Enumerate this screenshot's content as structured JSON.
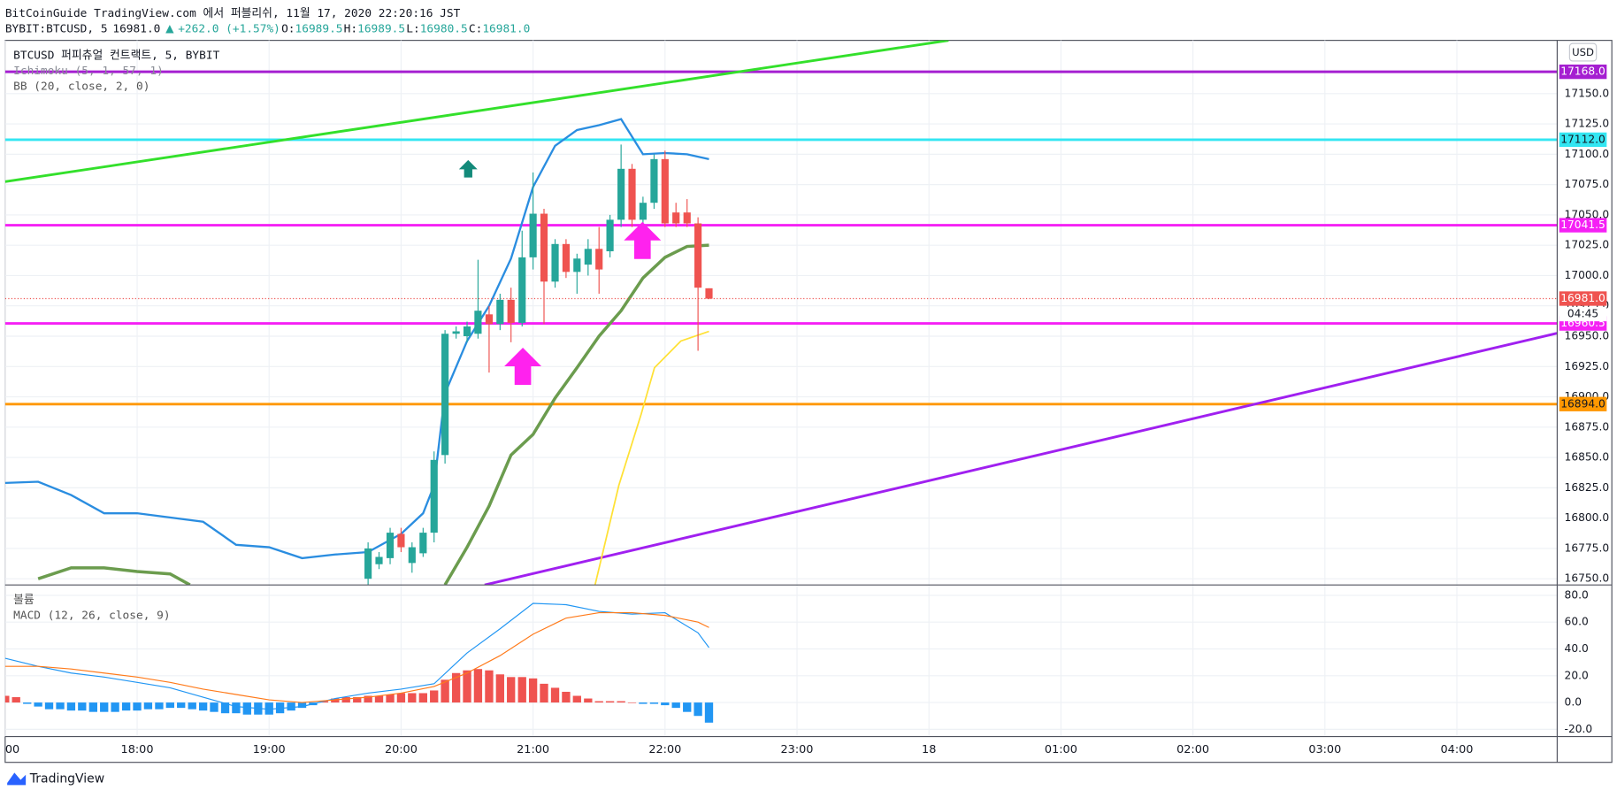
{
  "header": {
    "publisher": "BitCoinGuide TradingView.com 에서 퍼블리쉬, 11월 17, 2020 22:20:16 JST",
    "symbol": "BYBIT:BTCUSD, 5",
    "last": "16981.0",
    "change": "+262.0 (+1.57%)",
    "ohlc": [
      {
        "label": "O:",
        "value": "16989.5"
      },
      {
        "label": "H:",
        "value": "16989.5"
      },
      {
        "label": "L:",
        "value": "16980.5"
      },
      {
        "label": "C:",
        "value": "16981.0"
      }
    ]
  },
  "legend": [
    "BTCUSD 퍼피츄얼 컨트랙트, 5, BYBIT",
    "Ichimoku (5, 1, 57, 1)",
    "BB (20, close, 2, 0)"
  ],
  "currency": "USD",
  "countdown": "04:45",
  "brand": "TradingView",
  "chart_data": [
    {
      "type": "candlestick",
      "up_color": "#26a69a",
      "down_color": "#ef5350",
      "grid": true,
      "xlim": [
        17,
        28.76
      ],
      "xticks": [
        {
          "value": 17,
          "label": "00"
        },
        {
          "value": 18,
          "label": "18:00"
        },
        {
          "value": 19,
          "label": "19:00"
        },
        {
          "value": 20,
          "label": "20:00"
        },
        {
          "value": 21,
          "label": "21:00"
        },
        {
          "value": 22,
          "label": "22:00"
        },
        {
          "value": 23,
          "label": "23:00"
        },
        {
          "value": 24,
          "label": "18"
        },
        {
          "value": 25,
          "label": "01:00"
        },
        {
          "value": 26,
          "label": "02:00"
        },
        {
          "value": 27,
          "label": "03:00"
        },
        {
          "value": 28,
          "label": "04:00"
        }
      ],
      "ylim": [
        16744.9,
        17193.9
      ],
      "yticks": [
        {
          "value": 16750,
          "label": "16750.0"
        },
        {
          "value": 16775,
          "label": "16775.0"
        },
        {
          "value": 16800,
          "label": "16800.0"
        },
        {
          "value": 16825,
          "label": "16825.0"
        },
        {
          "value": 16850,
          "label": "16850.0"
        },
        {
          "value": 16875,
          "label": "16875.0"
        },
        {
          "value": 16900,
          "label": "16900.0"
        },
        {
          "value": 16925,
          "label": "16925.0"
        },
        {
          "value": 16950,
          "label": "16950.0"
        },
        {
          "value": 16975,
          "label": "16975.0"
        },
        {
          "value": 17000,
          "label": "17000.0"
        },
        {
          "value": 17025,
          "label": "17025.0"
        },
        {
          "value": 17050,
          "label": "17050.0"
        },
        {
          "value": 17075,
          "label": "17075.0"
        },
        {
          "value": 17100,
          "label": "17100.0"
        },
        {
          "value": 17125,
          "label": "17125.0"
        },
        {
          "value": 17150,
          "label": "17150.0"
        }
      ],
      "x": [
        19.75,
        19.833,
        19.917,
        20,
        20.083,
        20.167,
        20.25,
        20.333,
        20.417,
        20.5,
        20.583,
        20.667,
        20.75,
        20.833,
        20.917,
        21,
        21.083,
        21.167,
        21.25,
        21.333,
        21.417,
        21.5,
        21.583,
        21.667,
        21.75,
        21.833,
        21.917,
        22,
        22.083,
        22.167,
        22.25,
        22.333
      ],
      "open": [
        16750,
        16762,
        16767,
        16787,
        16763,
        16771,
        16788,
        16852,
        16952,
        16950,
        16952,
        16968,
        16960,
        16980,
        16961,
        17015,
        17051,
        16995,
        17026,
        17003,
        17009,
        17022,
        17020,
        17046,
        17088,
        17046,
        17060,
        17096,
        17052,
        17052,
        17043,
        16989.5
      ],
      "high": [
        16780,
        16772,
        16792,
        16792,
        16780,
        16792,
        16855,
        16955,
        16958,
        16962,
        17013,
        16975,
        16985,
        16990,
        17037,
        17085,
        17055,
        17030,
        17030,
        17018,
        17030,
        17040,
        17050,
        17108,
        17092,
        17065,
        17100,
        17103,
        17060,
        17063,
        17048,
        16989.5
      ],
      "low": [
        16745,
        16758,
        16762,
        16772,
        16755,
        16768,
        16780,
        16845,
        16948,
        16945,
        16948,
        16920,
        16955,
        16945,
        16958,
        17005,
        16960,
        16990,
        16998,
        16985,
        17000,
        16985,
        17015,
        17040,
        17040,
        17040,
        17055,
        17040,
        17040,
        17040,
        16938,
        16980.5
      ],
      "close": [
        16775,
        16768,
        16788,
        16776,
        16776,
        16788,
        16848,
        16952,
        16954,
        16958,
        16971,
        16960,
        16980,
        16961,
        17015,
        17051,
        16995,
        17026,
        17003,
        17014,
        17022,
        17005,
        17046,
        17088,
        17046,
        17060,
        17096,
        17043,
        17043,
        17043,
        16990,
        16981
      ],
      "lines": [
        {
          "color": "#2a8de0",
          "width": 2,
          "x": [
            17,
            17.25,
            17.5,
            17.75,
            18,
            18.5,
            18.75,
            19,
            19.25,
            19.5,
            19.75,
            20,
            20.167,
            20.25,
            20.333,
            20.5,
            20.667,
            20.833,
            21,
            21.167,
            21.333,
            21.5,
            21.667,
            21.833,
            22,
            22.167,
            22.333
          ],
          "values": [
            16829,
            16830,
            16819,
            16804,
            16804,
            16797,
            16778,
            16776,
            16767,
            16770,
            16772,
            16787,
            16804,
            16827,
            16903,
            16946,
            16975,
            17014,
            17073,
            17107,
            17120,
            17124,
            17129,
            17100,
            17101,
            17100,
            17096
          ]
        },
        {
          "color": "#6b9c4e",
          "width": 3,
          "x": [
            17.25,
            17.5,
            17.75,
            18,
            18.25,
            18.4,
            19.5,
            20.333,
            20.5,
            20.667,
            20.833,
            21,
            21.167,
            21.333,
            21.5,
            21.667,
            21.833,
            22,
            22.167,
            22.333
          ],
          "values": [
            16750,
            16759,
            16759,
            16756,
            16754,
            16745,
            null,
            16745,
            16776,
            16810,
            16852,
            16869,
            16899,
            16924,
            16950,
            16971,
            16998,
            17015,
            17024,
            17025
          ]
        },
        {
          "color": "#ffe135",
          "width": 1.5,
          "x": [
            21.47,
            21.65,
            21.82,
            21.92,
            22.12,
            22.333
          ],
          "values": [
            16745,
            16827,
            16886,
            16924,
            16946,
            16954
          ]
        }
      ],
      "trend_lines": [
        {
          "color": "#33e02b",
          "x": [
            17,
            24.148
          ],
          "values": [
            17077.4,
            17193.9
          ]
        },
        {
          "color": "#a020f0",
          "x": [
            20.633,
            28.758
          ],
          "values": [
            16744.9,
            16952.4
          ]
        }
      ],
      "levels": [
        {
          "value": 17168,
          "label": "17168.0",
          "color": "#a51fd1",
          "label_color": "#ffffff"
        },
        {
          "value": 17112,
          "label": "17112.0",
          "color": "#33e6f2",
          "label_color": "#131722"
        },
        {
          "value": 17041.5,
          "label": "17041.5",
          "color": "#f520f5",
          "label_color": "#ffffff"
        },
        {
          "value": 16960.5,
          "label": "16960.5",
          "color": "#f520f5",
          "label_color": "#ffffff"
        },
        {
          "value": 16894,
          "label": "16894.0",
          "color": "#ff9800",
          "label_color": "#131722"
        }
      ],
      "last_price": {
        "value": 16981,
        "label": "16981.0",
        "color": "#ef5350"
      }
    },
    {
      "type": "macd",
      "volume_label": "볼륨",
      "title": "MACD (12, 26, close, 9)",
      "ylim": [
        -25.4,
        86.2
      ],
      "yticks": [
        {
          "value": -20,
          "label": "-20.0"
        },
        {
          "value": 0,
          "label": "0.0"
        },
        {
          "value": 20,
          "label": "20.0"
        },
        {
          "value": 40,
          "label": "40.0"
        },
        {
          "value": 60,
          "label": "60.0"
        },
        {
          "value": 80,
          "label": "80.0"
        }
      ],
      "histogram": {
        "positive_color": "#ef5350",
        "negative_color": "#2196f3",
        "x": [
          17,
          17.083,
          17.167,
          17.25,
          17.333,
          17.417,
          17.5,
          17.583,
          17.667,
          17.75,
          17.833,
          17.917,
          18,
          18.083,
          18.167,
          18.25,
          18.333,
          18.417,
          18.5,
          18.583,
          18.667,
          18.75,
          18.833,
          18.917,
          19,
          19.083,
          19.167,
          19.25,
          19.333,
          19.417,
          19.5,
          19.583,
          19.667,
          19.75,
          19.833,
          19.917,
          20,
          20.083,
          20.167,
          20.25,
          20.333,
          20.417,
          20.5,
          20.583,
          20.667,
          20.75,
          20.833,
          20.917,
          21,
          21.083,
          21.167,
          21.25,
          21.333,
          21.417,
          21.5,
          21.583,
          21.667,
          21.75,
          21.833,
          21.917,
          22,
          22.083,
          22.167,
          22.25,
          22.333
        ],
        "values": [
          5,
          4,
          -1,
          -3,
          -5,
          -5,
          -6,
          -6,
          -7,
          -7,
          -7,
          -6,
          -6,
          -5,
          -5,
          -4,
          -4,
          -5,
          -6,
          -7,
          -8,
          -8,
          -9,
          -9,
          -9,
          -8,
          -6,
          -4,
          -2,
          1,
          3,
          4,
          4,
          5,
          5,
          6,
          7,
          7,
          7,
          9,
          17,
          22,
          24,
          25,
          24,
          21,
          19,
          19,
          18,
          14,
          11,
          8,
          5,
          3,
          1,
          1,
          1,
          0,
          -1,
          -1,
          -2,
          -4,
          -7,
          -10,
          -15
        ]
      },
      "series": [
        {
          "color": "#2196f3",
          "x": [
            17,
            17.25,
            17.5,
            17.75,
            18,
            18.25,
            18.5,
            18.75,
            19,
            19.25,
            19.5,
            19.75,
            20,
            20.25,
            20.5,
            20.75,
            21,
            21.25,
            21.5,
            21.75,
            22,
            22.25,
            22.333
          ],
          "values": [
            33,
            27,
            22,
            19,
            15,
            11,
            4,
            -3,
            -5,
            -3,
            3,
            7,
            10,
            14,
            37,
            55,
            74,
            73,
            68,
            66,
            67,
            52,
            41
          ]
        },
        {
          "color": "#ff7a1a",
          "x": [
            17,
            17.25,
            17.5,
            17.75,
            18,
            18.25,
            18.5,
            18.75,
            19,
            19.25,
            19.5,
            19.75,
            20,
            20.25,
            20.5,
            20.75,
            21,
            21.25,
            21.5,
            21.75,
            22,
            22.25,
            22.333
          ],
          "values": [
            27,
            27,
            25,
            22,
            19,
            15,
            10,
            6,
            2,
            0,
            2,
            4,
            7,
            12,
            22,
            35,
            51,
            63,
            67,
            67,
            65,
            60,
            56
          ]
        }
      ]
    }
  ]
}
